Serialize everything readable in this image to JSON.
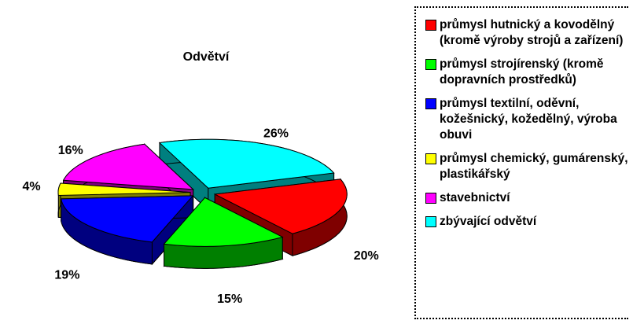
{
  "chart_data": {
    "type": "pie3d",
    "title": "Odvětví",
    "categories": [
      "průmysl hutnický a kovodělný (kromě výroby strojů a zařízení)",
      "průmysl strojírenský (kromě dopravních prostředků)",
      "průmysl textilní, oděvní, kožešnický, kožedělný, výroba obuvi",
      "průmysl chemický, gumárenský, plastikářský",
      "stavebnictví",
      "zbývající odvětví"
    ],
    "values": [
      20,
      15,
      19,
      4,
      16,
      26
    ],
    "value_labels": [
      "20%",
      "15%",
      "19%",
      "4%",
      "16%",
      "26%"
    ],
    "colors": [
      "#ff0000",
      "#00ff00",
      "#0000ff",
      "#ffff00",
      "#ff00ff",
      "#00ffff"
    ],
    "legend": "right"
  }
}
